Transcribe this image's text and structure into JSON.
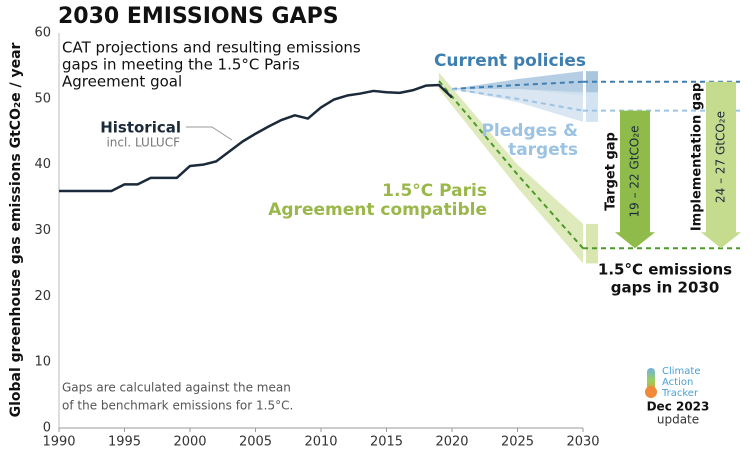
{
  "chart_data": {
    "type": "line",
    "title": "2030 EMISSIONS GAPS",
    "subtitle": [
      "CAT projections and resulting emissions",
      "gaps in meeting the 1.5°C Paris",
      "Agreement goal"
    ],
    "ylabel": "Global greenhouse gas emissions  GtCO₂e / year",
    "xlim": [
      1990,
      2030
    ],
    "ylim": [
      0,
      60
    ],
    "xticks": [
      1990,
      1995,
      2000,
      2005,
      2010,
      2015,
      2020,
      2025,
      2030
    ],
    "yticks": [
      0,
      10,
      20,
      30,
      40,
      50,
      60
    ],
    "grid": false,
    "series": [
      {
        "name": "Historical",
        "note": "incl. LULUCF",
        "color": "#1b2a3a",
        "x": [
          1990,
          1991,
          1992,
          1993,
          1994,
          1995,
          1996,
          1997,
          1998,
          1999,
          2000,
          2001,
          2002,
          2003,
          2004,
          2005,
          2006,
          2007,
          2008,
          2009,
          2010,
          2011,
          2012,
          2013,
          2014,
          2015,
          2016,
          2017,
          2018,
          2019,
          2020
        ],
        "values": [
          36,
          36,
          36,
          36,
          36,
          37,
          37,
          38,
          38,
          38,
          39.8,
          40,
          40.5,
          42,
          43.5,
          44.7,
          45.8,
          46.8,
          47.5,
          47,
          48.7,
          49.9,
          50.5,
          50.8,
          51.2,
          51,
          50.9,
          51.3,
          52,
          52.1,
          50.2
        ]
      }
    ],
    "projections": [
      {
        "name": "Current policies",
        "color": "#3e7fb0",
        "band_color": "#a9c6df",
        "x": [
          2020,
          2025,
          2030
        ],
        "low": [
          51.5,
          51.5,
          50.5
        ],
        "high": [
          51.5,
          53,
          54.2
        ],
        "values": [
          51.5,
          52.1,
          52.6
        ]
      },
      {
        "name": [
          "Pledges &",
          "targets"
        ],
        "color": "#9cc3e3",
        "band_color": "#d3e3f1",
        "x": [
          2020,
          2025,
          2030
        ],
        "low": [
          51.5,
          49.5,
          46.5
        ],
        "high": [
          51.5,
          51.5,
          51
        ],
        "values": [
          51.5,
          50,
          48.2
        ]
      },
      {
        "name": [
          "1.5°C Paris",
          "Agreement compatible"
        ],
        "color": "#9ab84a",
        "band_color": "#d9e6b0",
        "line_color": "#4c9a2a",
        "x": [
          2019,
          2025,
          2030
        ],
        "low": [
          51.5,
          36.5,
          25
        ],
        "high": [
          54,
          40,
          31
        ],
        "values": [
          52.7,
          38.5,
          27.3
        ]
      }
    ],
    "gaps": [
      {
        "name": "Target gap",
        "range_label": "19 – 22 GtCO₂e",
        "from": 48.2,
        "to": 27.3,
        "color": "#8fbb4a"
      },
      {
        "name": "Implementation gap",
        "range_label": "24 – 27 GtCO₂e",
        "from": 52.6,
        "to": 27.3,
        "color": "#c5dc8e"
      }
    ],
    "gap_title": [
      "1.5°C emissions",
      "gaps in 2030"
    ],
    "footnote": [
      "Gaps are calculated against the mean",
      "of the benchmark emissions for 1.5°C."
    ],
    "logo": [
      "Climate",
      "Action",
      "Tracker"
    ],
    "date": "Dec 2023",
    "date_note": "update"
  }
}
